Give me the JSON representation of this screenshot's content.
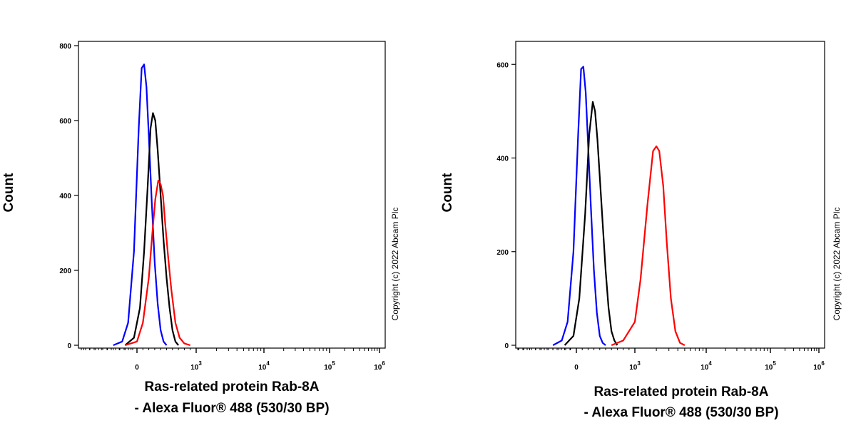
{
  "chart_data": [
    {
      "type": "line",
      "title": "",
      "ylabel": "Count",
      "xlabel_lines": [
        "Ras-related protein Rab-8A",
        "- Alexa Fluor® 488 (530/30 BP)"
      ],
      "copyright": "Copyright (c) 2022 Abcam Plc",
      "ylim": [
        0,
        800
      ],
      "yticks": [
        0,
        200,
        400,
        600,
        800
      ],
      "ytick_labels": [
        "0",
        "200",
        "400",
        "600",
        "800"
      ],
      "x_scale": "biexponential",
      "xticks": [
        0,
        1000,
        10000,
        100000,
        1000000
      ],
      "xtick_labels": [
        {
          "base": "0",
          "exp": ""
        },
        {
          "base": "10",
          "exp": "3"
        },
        {
          "base": "10",
          "exp": "4"
        },
        {
          "base": "10",
          "exp": "5"
        },
        {
          "base": "10",
          "exp": "6"
        }
      ],
      "series": [
        {
          "name": "blue",
          "color": "#0000ff",
          "x": [
            -400,
            -250,
            -150,
            -50,
            30,
            80,
            120,
            160,
            200,
            250,
            300,
            350,
            400,
            450,
            500
          ],
          "y": [
            0,
            10,
            60,
            250,
            580,
            740,
            750,
            690,
            560,
            380,
            220,
            110,
            40,
            10,
            0
          ]
        },
        {
          "name": "black",
          "color": "#000000",
          "x": [
            -200,
            -50,
            50,
            120,
            180,
            230,
            270,
            310,
            350,
            400,
            450,
            500,
            550,
            600,
            650,
            700
          ],
          "y": [
            0,
            20,
            100,
            250,
            420,
            580,
            620,
            600,
            520,
            400,
            280,
            180,
            100,
            40,
            10,
            0
          ]
        },
        {
          "name": "red",
          "color": "#ff0000",
          "x": [
            -200,
            0,
            100,
            200,
            260,
            310,
            360,
            400,
            440,
            480,
            530,
            580,
            650,
            720,
            800,
            900
          ],
          "y": [
            0,
            10,
            60,
            180,
            300,
            390,
            440,
            430,
            400,
            320,
            230,
            150,
            60,
            20,
            5,
            0
          ]
        }
      ]
    },
    {
      "type": "line",
      "title": "",
      "ylabel": "Count",
      "xlabel_lines": [
        "Ras-related protein Rab-8A",
        "- Alexa Fluor® 488 (530/30 BP)"
      ],
      "copyright": "Copyright (c) 2022 Abcam Plc",
      "ylim": [
        0,
        640
      ],
      "yticks": [
        0,
        200,
        400,
        600
      ],
      "ytick_labels": [
        "0",
        "200",
        "400",
        "600"
      ],
      "x_scale": "biexponential",
      "xticks": [
        0,
        1000,
        10000,
        100000,
        1000000
      ],
      "xtick_labels": [
        {
          "base": "0",
          "exp": ""
        },
        {
          "base": "10",
          "exp": "3"
        },
        {
          "base": "10",
          "exp": "4"
        },
        {
          "base": "10",
          "exp": "5"
        },
        {
          "base": "10",
          "exp": "6"
        }
      ],
      "series": [
        {
          "name": "blue",
          "color": "#0000ff",
          "x": [
            -400,
            -250,
            -150,
            -50,
            30,
            80,
            120,
            160,
            200,
            250,
            300,
            350,
            400,
            450,
            500
          ],
          "y": [
            0,
            10,
            50,
            200,
            450,
            590,
            595,
            540,
            430,
            290,
            160,
            70,
            20,
            5,
            0
          ]
        },
        {
          "name": "black",
          "color": "#000000",
          "x": [
            -200,
            -50,
            50,
            150,
            220,
            280,
            320,
            360,
            400,
            450,
            500,
            550,
            600,
            650,
            700
          ],
          "y": [
            0,
            20,
            100,
            280,
            450,
            520,
            500,
            440,
            360,
            260,
            160,
            80,
            30,
            10,
            0
          ]
        },
        {
          "name": "red",
          "color": "#ff0000",
          "x": [
            600,
            800,
            1000,
            1200,
            1500,
            1800,
            2000,
            2200,
            2500,
            2800,
            3200,
            3700,
            4300,
            5000
          ],
          "y": [
            0,
            10,
            50,
            140,
            300,
            415,
            425,
            415,
            340,
            220,
            100,
            30,
            5,
            0
          ]
        }
      ]
    }
  ]
}
